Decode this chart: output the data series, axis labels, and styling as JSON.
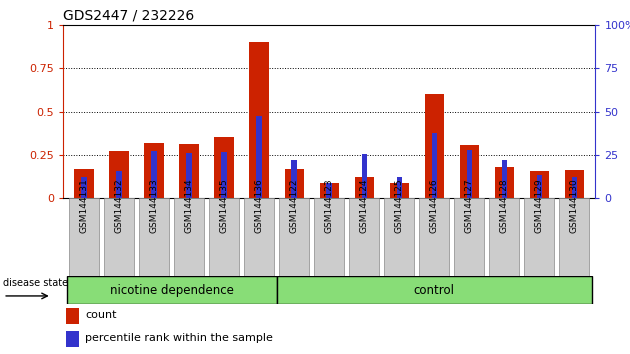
{
  "title": "GDS2447 / 232226",
  "categories": [
    "GSM144131",
    "GSM144132",
    "GSM144133",
    "GSM144134",
    "GSM144135",
    "GSM144136",
    "GSM144122",
    "GSM144123",
    "GSM144124",
    "GSM144125",
    "GSM144126",
    "GSM144127",
    "GSM144128",
    "GSM144129",
    "GSM144130"
  ],
  "count_values": [
    0.17,
    0.27,
    0.32,
    0.31,
    0.355,
    0.9,
    0.17,
    0.09,
    0.12,
    0.09,
    0.6,
    0.305,
    0.18,
    0.155,
    0.165
  ],
  "percentile_values": [
    0.12,
    0.155,
    0.27,
    0.26,
    0.265,
    0.475,
    0.22,
    0.09,
    0.255,
    0.12,
    0.375,
    0.28,
    0.22,
    0.135,
    0.12
  ],
  "group1_label": "nicotine dependence",
  "group2_label": "control",
  "group1_count": 6,
  "group2_count": 9,
  "bar_color_count": "#cc2200",
  "bar_color_percentile": "#3333cc",
  "left_axis_color": "#cc2200",
  "right_axis_color": "#3333cc",
  "ylim_left": [
    0,
    1.0
  ],
  "yticks_left": [
    0,
    0.25,
    0.5,
    0.75,
    1.0
  ],
  "ytick_labels_left": [
    "0",
    "0.25",
    "0.5",
    "0.75",
    "1"
  ],
  "yticks_right": [
    0,
    25,
    50,
    75,
    100
  ],
  "ytick_labels_right": [
    "0",
    "25",
    "50",
    "75",
    "100%"
  ],
  "background_color": "#ffffff",
  "group_bg_color": "#88dd77",
  "xlabel_bg_color": "#cccccc",
  "legend_count": "count",
  "legend_percentile": "percentile rank within the sample",
  "disease_state_label": "disease state",
  "bar_width": 0.55,
  "figsize": [
    6.3,
    3.54
  ],
  "dpi": 100
}
